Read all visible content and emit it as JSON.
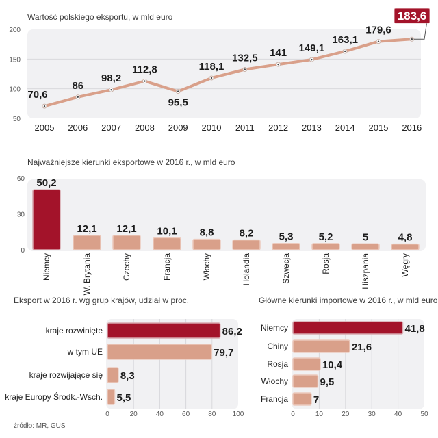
{
  "colors": {
    "highlight": "#a3132a",
    "bar": "#d9a08a",
    "bar_border": "#ecc9bc",
    "line": "#d9a08a",
    "plot_bg": "#f1f1f3",
    "grid": "#d8d8dc"
  },
  "source": "źródło: MR, GUS",
  "chart_data": [
    {
      "id": "export-value",
      "type": "line",
      "title": "Wartość polskiego eksportu, w mld euro",
      "xlabel": "",
      "ylabel": "",
      "ylim": [
        50,
        200
      ],
      "yticks": [
        "50",
        "100",
        "150",
        "200"
      ],
      "ytick_values": [
        50,
        100,
        150,
        200
      ],
      "grid": true,
      "x": [
        "2005",
        "2006",
        "2007",
        "2008",
        "2009",
        "2010",
        "2011",
        "2012",
        "2013",
        "2014",
        "2015",
        "2016"
      ],
      "values": [
        70.6,
        86,
        98.2,
        112.8,
        95.5,
        118.1,
        132.5,
        141,
        149.1,
        163.1,
        179.6,
        183.6
      ],
      "labels": [
        "70,6",
        "86",
        "98,2",
        "112,8",
        "95,5",
        "118,1",
        "132,5",
        "141",
        "149,1",
        "163,1",
        "179,6",
        "183,6"
      ],
      "highlight_index": 11
    },
    {
      "id": "export-directions",
      "type": "bar",
      "title": "Najważniejsze kierunki eksportowe w 2016 r., w mld euro",
      "xlabel": "",
      "ylabel": "",
      "ylim": [
        0,
        60
      ],
      "yticks": [
        "0",
        "30",
        "60"
      ],
      "ytick_values": [
        0,
        30,
        60
      ],
      "grid": true,
      "categories": [
        "Niemcy",
        "W. Brytania",
        "Czechy",
        "Francja",
        "Włochy",
        "Holandia",
        "Szwecja",
        "Rosja",
        "Hiszpania",
        "Węgry"
      ],
      "values": [
        50.2,
        12.1,
        12.1,
        10.1,
        8.8,
        8.2,
        5.3,
        5.2,
        5,
        4.8
      ],
      "labels": [
        "50,2",
        "12,1",
        "12,1",
        "10,1",
        "8,8",
        "8,2",
        "5,3",
        "5,2",
        "5",
        "4,8"
      ],
      "highlight_index": 0
    },
    {
      "id": "export-groups",
      "type": "bar",
      "orientation": "horizontal",
      "title": "Eksport w 2016 r. wg grup krajów, udział w proc.",
      "xlabel": "",
      "ylabel": "",
      "xlim": [
        0,
        100
      ],
      "xticks": [
        "0",
        "20",
        "40",
        "60",
        "80",
        "100"
      ],
      "xtick_values": [
        0,
        20,
        40,
        60,
        80,
        100
      ],
      "grid": true,
      "categories": [
        "kraje rozwinięte",
        "w tym UE",
        "kraje rozwijające się",
        "kraje Europy Środk.-Wsch."
      ],
      "values": [
        86.2,
        79.7,
        8.3,
        5.5
      ],
      "labels": [
        "86,2",
        "79,7",
        "8,3",
        "5,5"
      ],
      "highlight_index": 0
    },
    {
      "id": "import-directions",
      "type": "bar",
      "orientation": "horizontal",
      "title": "Główne kierunki importowe w 2016 r., w mld euro",
      "xlabel": "",
      "ylabel": "",
      "xlim": [
        0,
        50
      ],
      "xticks": [
        "0",
        "10",
        "20",
        "30",
        "40",
        "50"
      ],
      "xtick_values": [
        0,
        10,
        20,
        30,
        40,
        50
      ],
      "grid": true,
      "categories": [
        "Niemcy",
        "Chiny",
        "Rosja",
        "Włochy",
        "Francja"
      ],
      "values": [
        41.8,
        21.6,
        10.4,
        9.5,
        7
      ],
      "labels": [
        "41,8",
        "21,6",
        "10,4",
        "9,5",
        "7"
      ],
      "highlight_index": 0
    }
  ]
}
